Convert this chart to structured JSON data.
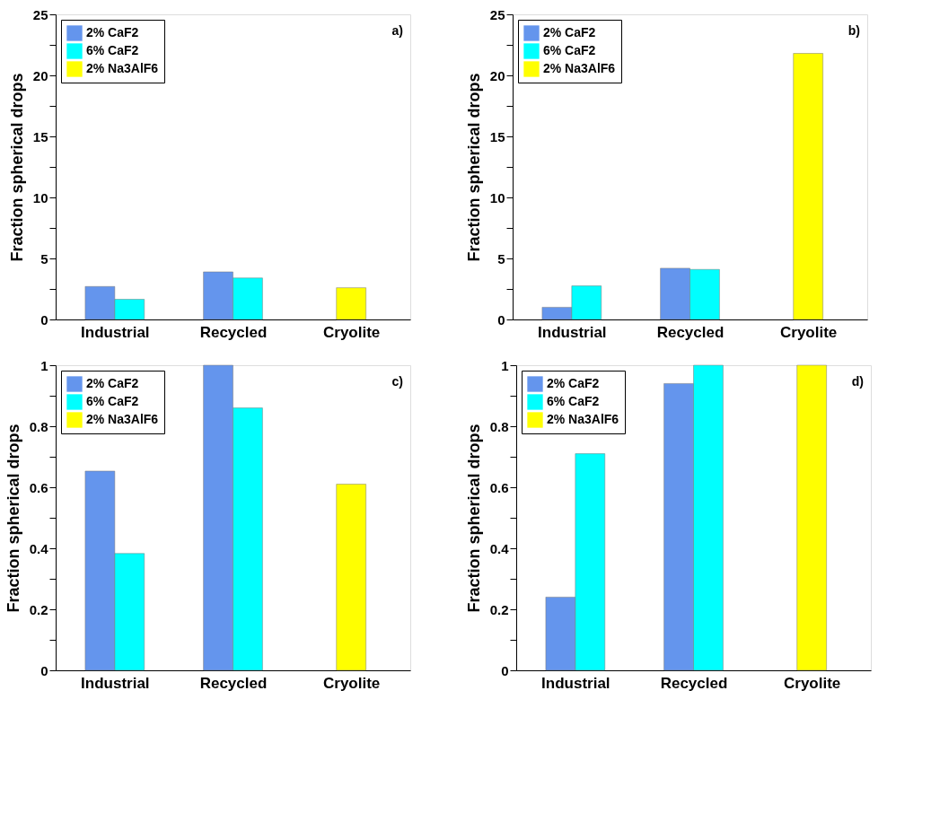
{
  "chart_data": [
    {
      "type": "bar",
      "ylabel": "Fraction spherical drops",
      "categories": [
        "Industrial",
        "Recycled",
        "Cryolite"
      ],
      "series": [
        {
          "name": "2% CaF2",
          "color": "#6495ed",
          "values": [
            2.7,
            3.9,
            null
          ]
        },
        {
          "name": "6% CaF2",
          "color": "#00ffff",
          "values": [
            1.65,
            3.4,
            null
          ]
        },
        {
          "name": "2% Na3AlF6",
          "color": "#ffff00",
          "values": [
            null,
            null,
            2.6
          ]
        }
      ],
      "ylim": [
        0,
        25
      ],
      "yticks": [
        0,
        {
          "value": 2.5,
          "label": null
        },
        5,
        {
          "value": 7.5,
          "label": null
        },
        10,
        {
          "value": 12.5,
          "label": null
        },
        15,
        {
          "value": 17.5,
          "label": null
        },
        20,
        {
          "value": 22.5,
          "label": null
        },
        25
      ],
      "annotations": [
        "a)"
      ],
      "legend": "top left",
      "grid": false
    },
    {
      "type": "bar",
      "ylabel": "Fraction spherical drops",
      "categories": [
        "Industrial",
        "Recycled",
        "Cryolite"
      ],
      "series": [
        {
          "name": "2% CaF2",
          "color": "#6495ed",
          "values": [
            1.0,
            4.2,
            null
          ]
        },
        {
          "name": "6% CaF2",
          "color": "#00ffff",
          "values": [
            2.75,
            4.1,
            null
          ]
        },
        {
          "name": "2% Na3AlF6",
          "color": "#ffff00",
          "values": [
            null,
            null,
            21.8
          ]
        }
      ],
      "ylim": [
        0,
        25
      ],
      "yticks": [
        0,
        {
          "value": 2.5,
          "label": null
        },
        5,
        {
          "value": 7.5,
          "label": null
        },
        10,
        {
          "value": 12.5,
          "label": null
        },
        15,
        {
          "value": 17.5,
          "label": null
        },
        20,
        {
          "value": 22.5,
          "label": null
        },
        25
      ],
      "annotations": [
        "b)"
      ],
      "legend": "top left",
      "grid": false
    },
    {
      "type": "bar",
      "ylabel": "Fraction spherical drops",
      "categories": [
        "Industrial",
        "Recycled",
        "Cryolite"
      ],
      "series": [
        {
          "name": "2% CaF2",
          "color": "#6495ed",
          "values": [
            0.653,
            1.0,
            null
          ]
        },
        {
          "name": "6% CaF2",
          "color": "#00ffff",
          "values": [
            0.383,
            0.86,
            null
          ]
        },
        {
          "name": "2% Na3AlF6",
          "color": "#ffff00",
          "values": [
            null,
            null,
            0.61
          ]
        }
      ],
      "ylim": [
        0,
        1
      ],
      "yticks": [
        0,
        {
          "value": 0.1,
          "label": null
        },
        0.2,
        {
          "value": 0.3,
          "label": null
        },
        0.4,
        {
          "value": 0.5,
          "label": null
        },
        0.6,
        {
          "value": 0.7,
          "label": null
        },
        0.8,
        {
          "value": 0.9,
          "label": null
        },
        1
      ],
      "annotations": [
        "c)"
      ],
      "legend": "top left",
      "grid": false
    },
    {
      "type": "bar",
      "ylabel": "Fraction spherical drops",
      "categories": [
        "Industrial",
        "Recycled",
        "Cryolite"
      ],
      "series": [
        {
          "name": "2% CaF2",
          "color": "#6495ed",
          "values": [
            0.24,
            0.94,
            null
          ]
        },
        {
          "name": "6% CaF2",
          "color": "#00ffff",
          "values": [
            0.71,
            1.0,
            null
          ]
        },
        {
          "name": "2% Na3AlF6",
          "color": "#ffff00",
          "values": [
            null,
            null,
            1.0
          ]
        }
      ],
      "ylim": [
        0,
        1
      ],
      "yticks": [
        0,
        {
          "value": 0.1,
          "label": null
        },
        0.2,
        {
          "value": 0.3,
          "label": null
        },
        0.4,
        {
          "value": 0.5,
          "label": null
        },
        0.6,
        {
          "value": 0.7,
          "label": null
        },
        0.8,
        {
          "value": 0.9,
          "label": null
        },
        1
      ],
      "annotations": [
        "d)"
      ],
      "legend": "top left",
      "grid": false
    }
  ]
}
